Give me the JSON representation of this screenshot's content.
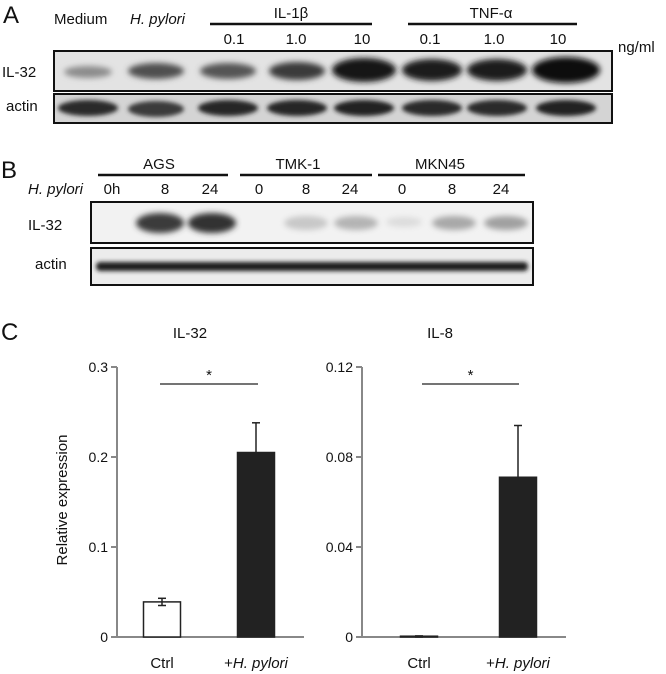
{
  "panel_a": {
    "letter": "A",
    "lane_labels": [
      "Medium",
      "H. pylori"
    ],
    "groups": [
      {
        "name": "IL-1β",
        "doses": [
          "0.1",
          "1.0",
          "10"
        ]
      },
      {
        "name": "TNF-α",
        "doses": [
          "0.1",
          "1.0",
          "10"
        ]
      }
    ],
    "unit": "ng/ml",
    "rows": [
      "IL-32",
      "actin"
    ]
  },
  "panel_b": {
    "letter": "B",
    "treatment_label": "H. pylori",
    "cell_lines": [
      {
        "name": "AGS",
        "times": [
          "0h",
          "8",
          "24"
        ]
      },
      {
        "name": "TMK-1",
        "times": [
          "0",
          "8",
          "24"
        ]
      },
      {
        "name": "MKN45",
        "times": [
          "0",
          "8",
          "24"
        ]
      }
    ],
    "rows": [
      "IL-32",
      "actin"
    ]
  },
  "panel_c": {
    "letter": "C",
    "ylabel": "Relative expression"
  },
  "chart_data": [
    {
      "type": "bar",
      "title": "IL-32",
      "ylabel": "Relative expression",
      "categories": [
        "Ctrl",
        "+H. pylori"
      ],
      "values": [
        0.039,
        0.205
      ],
      "errors": [
        0.004,
        0.033
      ],
      "bar_colors": [
        "#ffffff",
        "#222222"
      ],
      "ylim": [
        0,
        0.3
      ],
      "yticks": [
        "0",
        "0.1",
        "0.2",
        "0.3"
      ],
      "significance": "*"
    },
    {
      "type": "bar",
      "title": "IL-8",
      "ylabel": "",
      "categories": [
        "Ctrl",
        "+H. pylori"
      ],
      "values": [
        0.0002,
        0.071
      ],
      "errors": [
        0.0003,
        0.023
      ],
      "bar_colors": [
        "#ffffff",
        "#222222"
      ],
      "ylim": [
        0,
        0.12
      ],
      "yticks": [
        "0",
        "0.04",
        "0.08",
        "0.12"
      ],
      "significance": "*"
    }
  ]
}
